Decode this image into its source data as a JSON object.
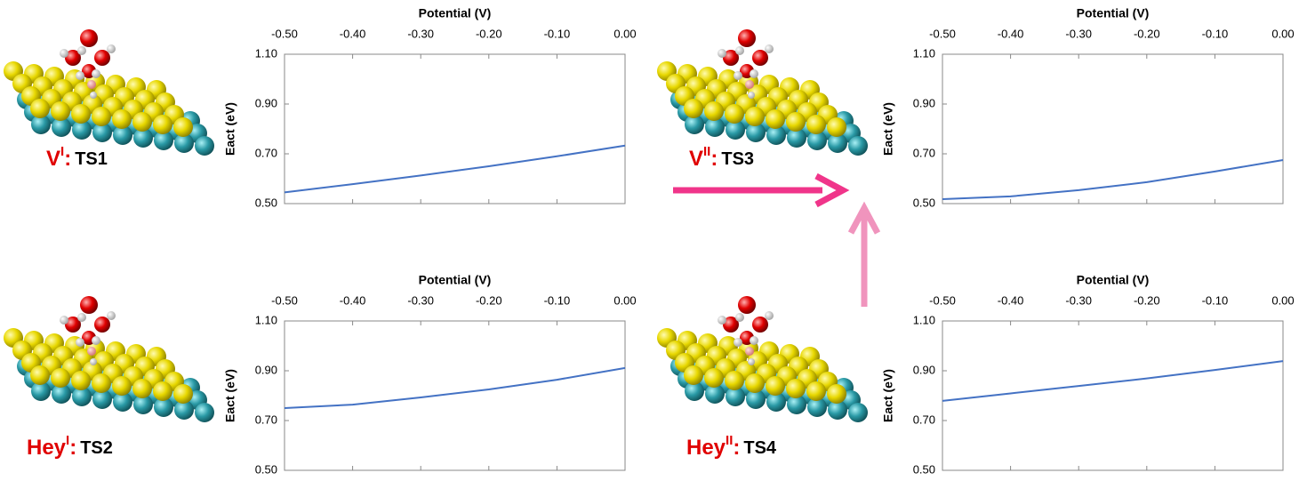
{
  "chart_data": [
    {
      "type": "line",
      "x_label": "Potential (V)",
      "y_label": "Eact (eV)",
      "x": [
        -0.5,
        -0.4,
        -0.3,
        -0.2,
        -0.1,
        0
      ],
      "values": [
        0.545,
        0.578,
        0.613,
        0.65,
        0.69,
        0.733
      ],
      "color": "#4472c4",
      "xlim": [
        -0.5,
        0
      ],
      "xticks": [
        {
          "value": -0.5,
          "label": "-0.50"
        },
        {
          "value": -0.4,
          "label": "-0.40"
        },
        {
          "value": -0.3,
          "label": "-0.30"
        },
        {
          "value": -0.2,
          "label": "-0.20"
        },
        {
          "value": -0.1,
          "label": "-0.10"
        },
        {
          "value": 0,
          "label": "0.00"
        }
      ],
      "ylim": [
        0.5,
        1.1
      ],
      "yticks": [
        {
          "value": 0.5,
          "label": "0.50"
        },
        {
          "value": 0.7,
          "label": "0.70"
        },
        {
          "value": 0.9,
          "label": "0.90"
        },
        {
          "value": 1.1,
          "label": "1.10"
        }
      ]
    },
    {
      "type": "line",
      "x_label": "Potential (V)",
      "y_label": "Eact (eV)",
      "x": [
        -0.5,
        -0.4,
        -0.3,
        -0.2,
        -0.1,
        0
      ],
      "values": [
        0.518,
        0.529,
        0.554,
        0.586,
        0.629,
        0.675
      ],
      "color": "#4472c4",
      "xlim": [
        -0.5,
        0
      ],
      "xticks": [
        {
          "value": -0.5,
          "label": "-0.50"
        },
        {
          "value": -0.4,
          "label": "-0.40"
        },
        {
          "value": -0.3,
          "label": "-0.30"
        },
        {
          "value": -0.2,
          "label": "-0.20"
        },
        {
          "value": -0.1,
          "label": "-0.10"
        },
        {
          "value": 0,
          "label": "0.00"
        }
      ],
      "ylim": [
        0.5,
        1.1
      ],
      "yticks": [
        {
          "value": 0.5,
          "label": "0.50"
        },
        {
          "value": 0.7,
          "label": "0.70"
        },
        {
          "value": 0.9,
          "label": "0.90"
        },
        {
          "value": 1.1,
          "label": "1.10"
        }
      ]
    },
    {
      "type": "line",
      "x_label": "Potential (V)",
      "y_label": "Eact (eV)",
      "x": [
        -0.5,
        -0.4,
        -0.3,
        -0.2,
        -0.1,
        0
      ],
      "values": [
        0.75,
        0.764,
        0.793,
        0.825,
        0.864,
        0.911
      ],
      "color": "#4472c4",
      "xlim": [
        -0.5,
        0
      ],
      "xticks": [
        {
          "value": -0.5,
          "label": "-0.50"
        },
        {
          "value": -0.4,
          "label": "-0.40"
        },
        {
          "value": -0.3,
          "label": "-0.30"
        },
        {
          "value": -0.2,
          "label": "-0.20"
        },
        {
          "value": -0.1,
          "label": "-0.10"
        },
        {
          "value": 0,
          "label": "0.00"
        }
      ],
      "ylim": [
        0.5,
        1.1
      ],
      "yticks": [
        {
          "value": 0.5,
          "label": "0.50"
        },
        {
          "value": 0.7,
          "label": "0.70"
        },
        {
          "value": 0.9,
          "label": "0.90"
        },
        {
          "value": 1.1,
          "label": "1.10"
        }
      ]
    },
    {
      "type": "line",
      "x_label": "Potential (V)",
      "y_label": "Eact (eV)",
      "x": [
        -0.5,
        -0.4,
        -0.3,
        -0.2,
        -0.1,
        0
      ],
      "values": [
        0.779,
        0.809,
        0.839,
        0.869,
        0.903,
        0.939
      ],
      "color": "#4472c4",
      "xlim": [
        -0.5,
        0
      ],
      "xticks": [
        {
          "value": -0.5,
          "label": "-0.50"
        },
        {
          "value": -0.4,
          "label": "-0.40"
        },
        {
          "value": -0.3,
          "label": "-0.30"
        },
        {
          "value": -0.2,
          "label": "-0.20"
        },
        {
          "value": -0.1,
          "label": "-0.10"
        },
        {
          "value": 0,
          "label": "0.00"
        }
      ],
      "ylim": [
        0.5,
        1.1
      ],
      "yticks": [
        {
          "value": 0.5,
          "label": "0.50"
        },
        {
          "value": 0.7,
          "label": "0.70"
        },
        {
          "value": 0.9,
          "label": "0.90"
        },
        {
          "value": 1.1,
          "label": "1.10"
        }
      ]
    }
  ],
  "structures": [
    {
      "label": "V",
      "superscript": "I",
      "separator": ":",
      "name": "TS1"
    },
    {
      "label": "V",
      "superscript": "II",
      "separator": ":",
      "name": "TS3"
    },
    {
      "label": "Hey",
      "superscript": "I",
      "separator": ":",
      "name": "TS2"
    },
    {
      "label": "Hey",
      "superscript": "II",
      "separator": ":",
      "name": "TS4"
    }
  ]
}
